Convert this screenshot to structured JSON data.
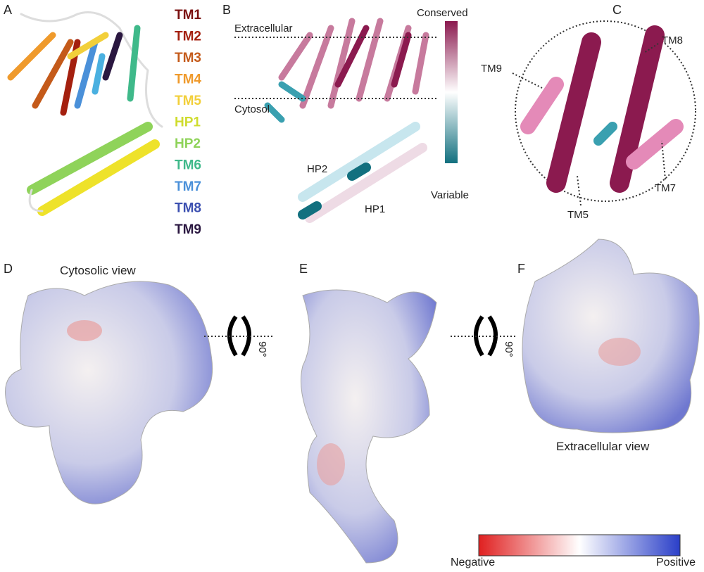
{
  "panels": {
    "a": {
      "label": "A",
      "legend": [
        {
          "label": "TM1",
          "color": "#7a1010"
        },
        {
          "label": "TM2",
          "color": "#a4200f"
        },
        {
          "label": "TM3",
          "color": "#c45a1a"
        },
        {
          "label": "TM4",
          "color": "#ef9a2c"
        },
        {
          "label": "TM5",
          "color": "#f2cf3a"
        },
        {
          "label": "HP1",
          "color": "#cfdc2e"
        },
        {
          "label": "HP2",
          "color": "#8fd35a"
        },
        {
          "label": "TM6",
          "color": "#3fb98a"
        },
        {
          "label": "TM7",
          "color": "#4a90d9"
        },
        {
          "label": "TM8",
          "color": "#3b4fb0"
        },
        {
          "label": "TM9",
          "color": "#2a1740"
        }
      ]
    },
    "b": {
      "label": "B",
      "extracellular": "Extracellular",
      "cytosol": "Cytosol",
      "scale_top": "Conserved",
      "scale_bottom": "Variable",
      "hp2": "HP2",
      "hp1": "HP1"
    },
    "c": {
      "label": "C",
      "tm9": "TM9",
      "tm8": "TM8",
      "tm7": "TM7",
      "tm5": "TM5"
    },
    "d": {
      "label": "D",
      "caption": "Cytosolic view",
      "rotation": "90°"
    },
    "e": {
      "label": "E",
      "rotation": "90°"
    },
    "f": {
      "label": "F",
      "caption": "Extracellular view"
    },
    "scale": {
      "negative": "Negative",
      "positive": "Positive"
    }
  }
}
